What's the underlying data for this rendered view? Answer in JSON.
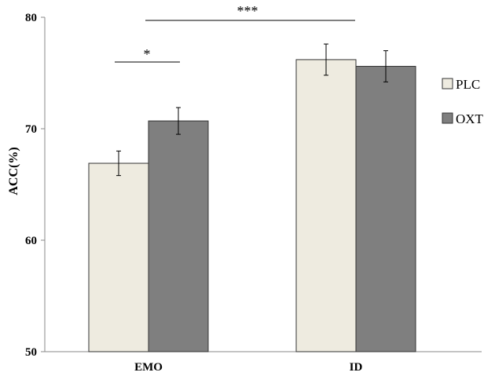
{
  "chart_data": {
    "type": "bar",
    "title": "",
    "xlabel": "",
    "ylabel": "ACC(%)",
    "ylim": [
      50,
      80
    ],
    "yticks": [
      50,
      60,
      70,
      80
    ],
    "categories": [
      "EMO",
      "ID"
    ],
    "series": [
      {
        "name": "PLC",
        "values": [
          66.9,
          76.2
        ],
        "errors": [
          1.1,
          1.4
        ],
        "color": "#eeebe0"
      },
      {
        "name": "OXT",
        "values": [
          70.7,
          75.6
        ],
        "errors": [
          1.2,
          1.4
        ],
        "color": "#7f7f7f"
      }
    ],
    "legend": "right",
    "grid": false,
    "annotations": [
      {
        "label": "*",
        "between": [
          "EMO-PLC",
          "EMO-OXT"
        ]
      },
      {
        "label": "***",
        "between": [
          "EMO",
          "ID"
        ]
      }
    ]
  }
}
